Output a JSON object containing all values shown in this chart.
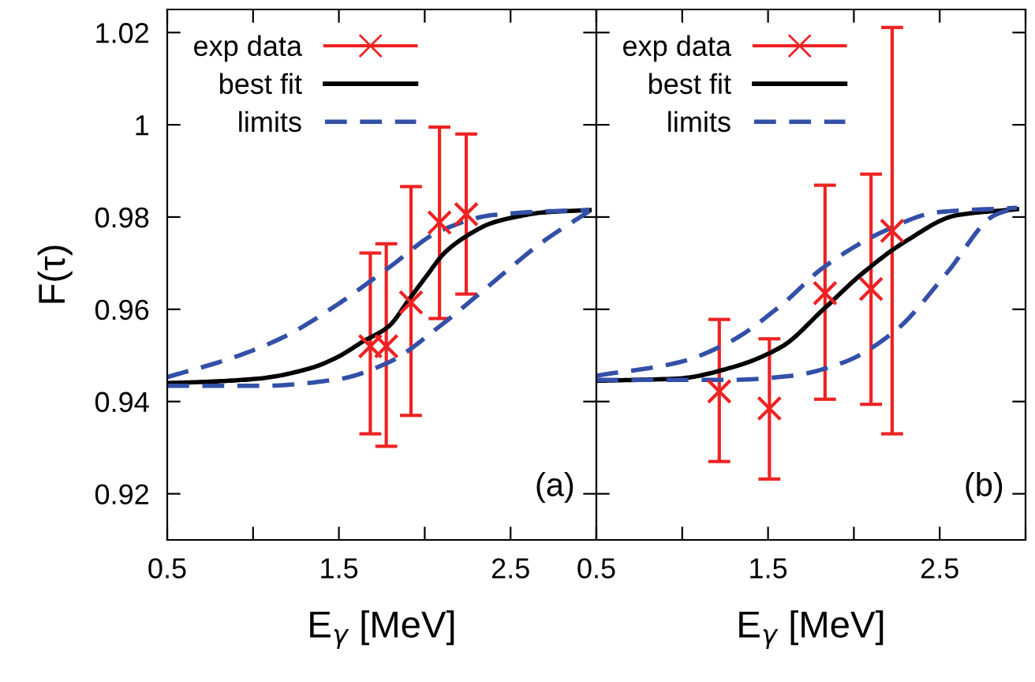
{
  "chart_data": [
    {
      "type": "line",
      "ylabel": "F(τ)",
      "xlabel": "E$_{γ}$ [MeV]",
      "xlim": [
        0.5,
        3.0
      ],
      "ylim": [
        0.91,
        1.025
      ],
      "xticks": [
        0.5,
        {
          "value": 1.0,
          "label": null
        },
        1.5,
        {
          "value": 2.0,
          "label": null
        },
        2.5,
        {
          "value": 3.0,
          "label": null
        }
      ],
      "yticks": [
        0.92,
        0.94,
        0.96,
        0.98,
        1,
        1.02
      ],
      "grid": false,
      "legend": "top left",
      "annotations": [
        "(a)"
      ],
      "series": [
        {
          "name": "exp data",
          "type": "scatter",
          "color": "#ee2222",
          "marker": "cross",
          "x": [
            1.683,
            1.776,
            1.92,
            2.086,
            2.242
          ],
          "values": [
            0.952,
            0.952,
            0.9615,
            0.9788,
            0.9806
          ],
          "errors": [
            [
              0.933,
              0.9722
            ],
            [
              0.9303,
              0.9742
            ],
            [
              0.937,
              0.9866
            ],
            [
              0.958,
              0.9995
            ],
            [
              0.9633,
              0.998
            ]
          ]
        },
        {
          "name": "best fit",
          "color": "#000000",
          "line_style": "solid",
          "x": [
            0.5,
            0.74,
            1.04,
            1.34,
            1.49,
            1.64,
            1.79,
            1.91,
            2.0,
            2.12,
            2.24,
            2.39,
            2.54,
            2.69,
            2.96
          ],
          "values": [
            0.944,
            0.9443,
            0.945,
            0.9473,
            0.9496,
            0.953,
            0.9563,
            0.9622,
            0.9667,
            0.9724,
            0.9758,
            0.9787,
            0.9801,
            0.981,
            0.9815
          ]
        },
        {
          "name": "limits",
          "color": "#3350a8",
          "line_style": "dashed",
          "x": [
            0.5,
            0.89,
            1.19,
            1.49,
            1.79,
            2.09,
            2.39,
            2.69,
            2.96
          ],
          "values": [
            0.9453,
            0.9496,
            0.9542,
            0.961,
            0.969,
            0.977,
            0.9804,
            0.9812,
            0.9815
          ]
        },
        {
          "color": "#3350a8",
          "line_style": "dashed",
          "x": [
            0.5,
            1.04,
            1.49,
            1.79,
            2.09,
            2.39,
            2.69,
            2.96
          ],
          "values": [
            0.9434,
            0.9434,
            0.9448,
            0.9485,
            0.9564,
            0.9656,
            0.9747,
            0.9813
          ]
        }
      ]
    },
    {
      "type": "line",
      "xlabel": "E$_{γ}$ [MeV]",
      "xlim": [
        0.5,
        3.0
      ],
      "ylim": [
        0.91,
        1.025
      ],
      "tick_labels": "x",
      "xticks": [
        0.5,
        {
          "value": 1.0,
          "label": null
        },
        1.5,
        {
          "value": 2.0,
          "label": null
        },
        2.5,
        {
          "value": 3.0,
          "label": null
        }
      ],
      "yticks": [
        0.92,
        0.94,
        0.96,
        0.98,
        1,
        1.02
      ],
      "grid": false,
      "legend": "top left",
      "annotations": [
        "(b)"
      ],
      "series": [
        {
          "name": "exp data",
          "type": "scatter",
          "color": "#ee2222",
          "marker": "cross",
          "x": [
            1.216,
            1.508,
            1.832,
            2.1,
            2.223
          ],
          "values": [
            0.9422,
            0.9385,
            0.9635,
            0.9644,
            0.977
          ],
          "errors": [
            [
              0.927,
              0.9578
            ],
            [
              0.9232,
              0.9536
            ],
            [
              0.9405,
              0.9869
            ],
            [
              0.9394,
              0.9893
            ],
            [
              0.933,
              1.0211
            ]
          ]
        },
        {
          "name": "best fit",
          "color": "#000000",
          "line_style": "solid",
          "x": [
            0.5,
            0.98,
            1.28,
            1.58,
            1.82,
            2.05,
            2.3,
            2.6,
            2.95
          ],
          "values": [
            0.9445,
            0.945,
            0.9473,
            0.9519,
            0.9599,
            0.9678,
            0.9747,
            0.9804,
            0.9817
          ]
        },
        {
          "name": "limits",
          "color": "#3350a8",
          "line_style": "dashed",
          "x": [
            0.5,
            0.98,
            1.28,
            1.58,
            1.82,
            2.18,
            2.48,
            2.95
          ],
          "values": [
            0.9456,
            0.9485,
            0.953,
            0.961,
            0.969,
            0.977,
            0.981,
            0.982
          ]
        },
        {
          "color": "#3350a8",
          "line_style": "dashed",
          "x": [
            0.5,
            1.28,
            1.64,
            1.94,
            2.24,
            2.54,
            2.82,
            2.95
          ],
          "values": [
            0.9447,
            0.9447,
            0.9456,
            0.9485,
            0.9553,
            0.9678,
            0.9804,
            0.982
          ]
        }
      ]
    }
  ]
}
